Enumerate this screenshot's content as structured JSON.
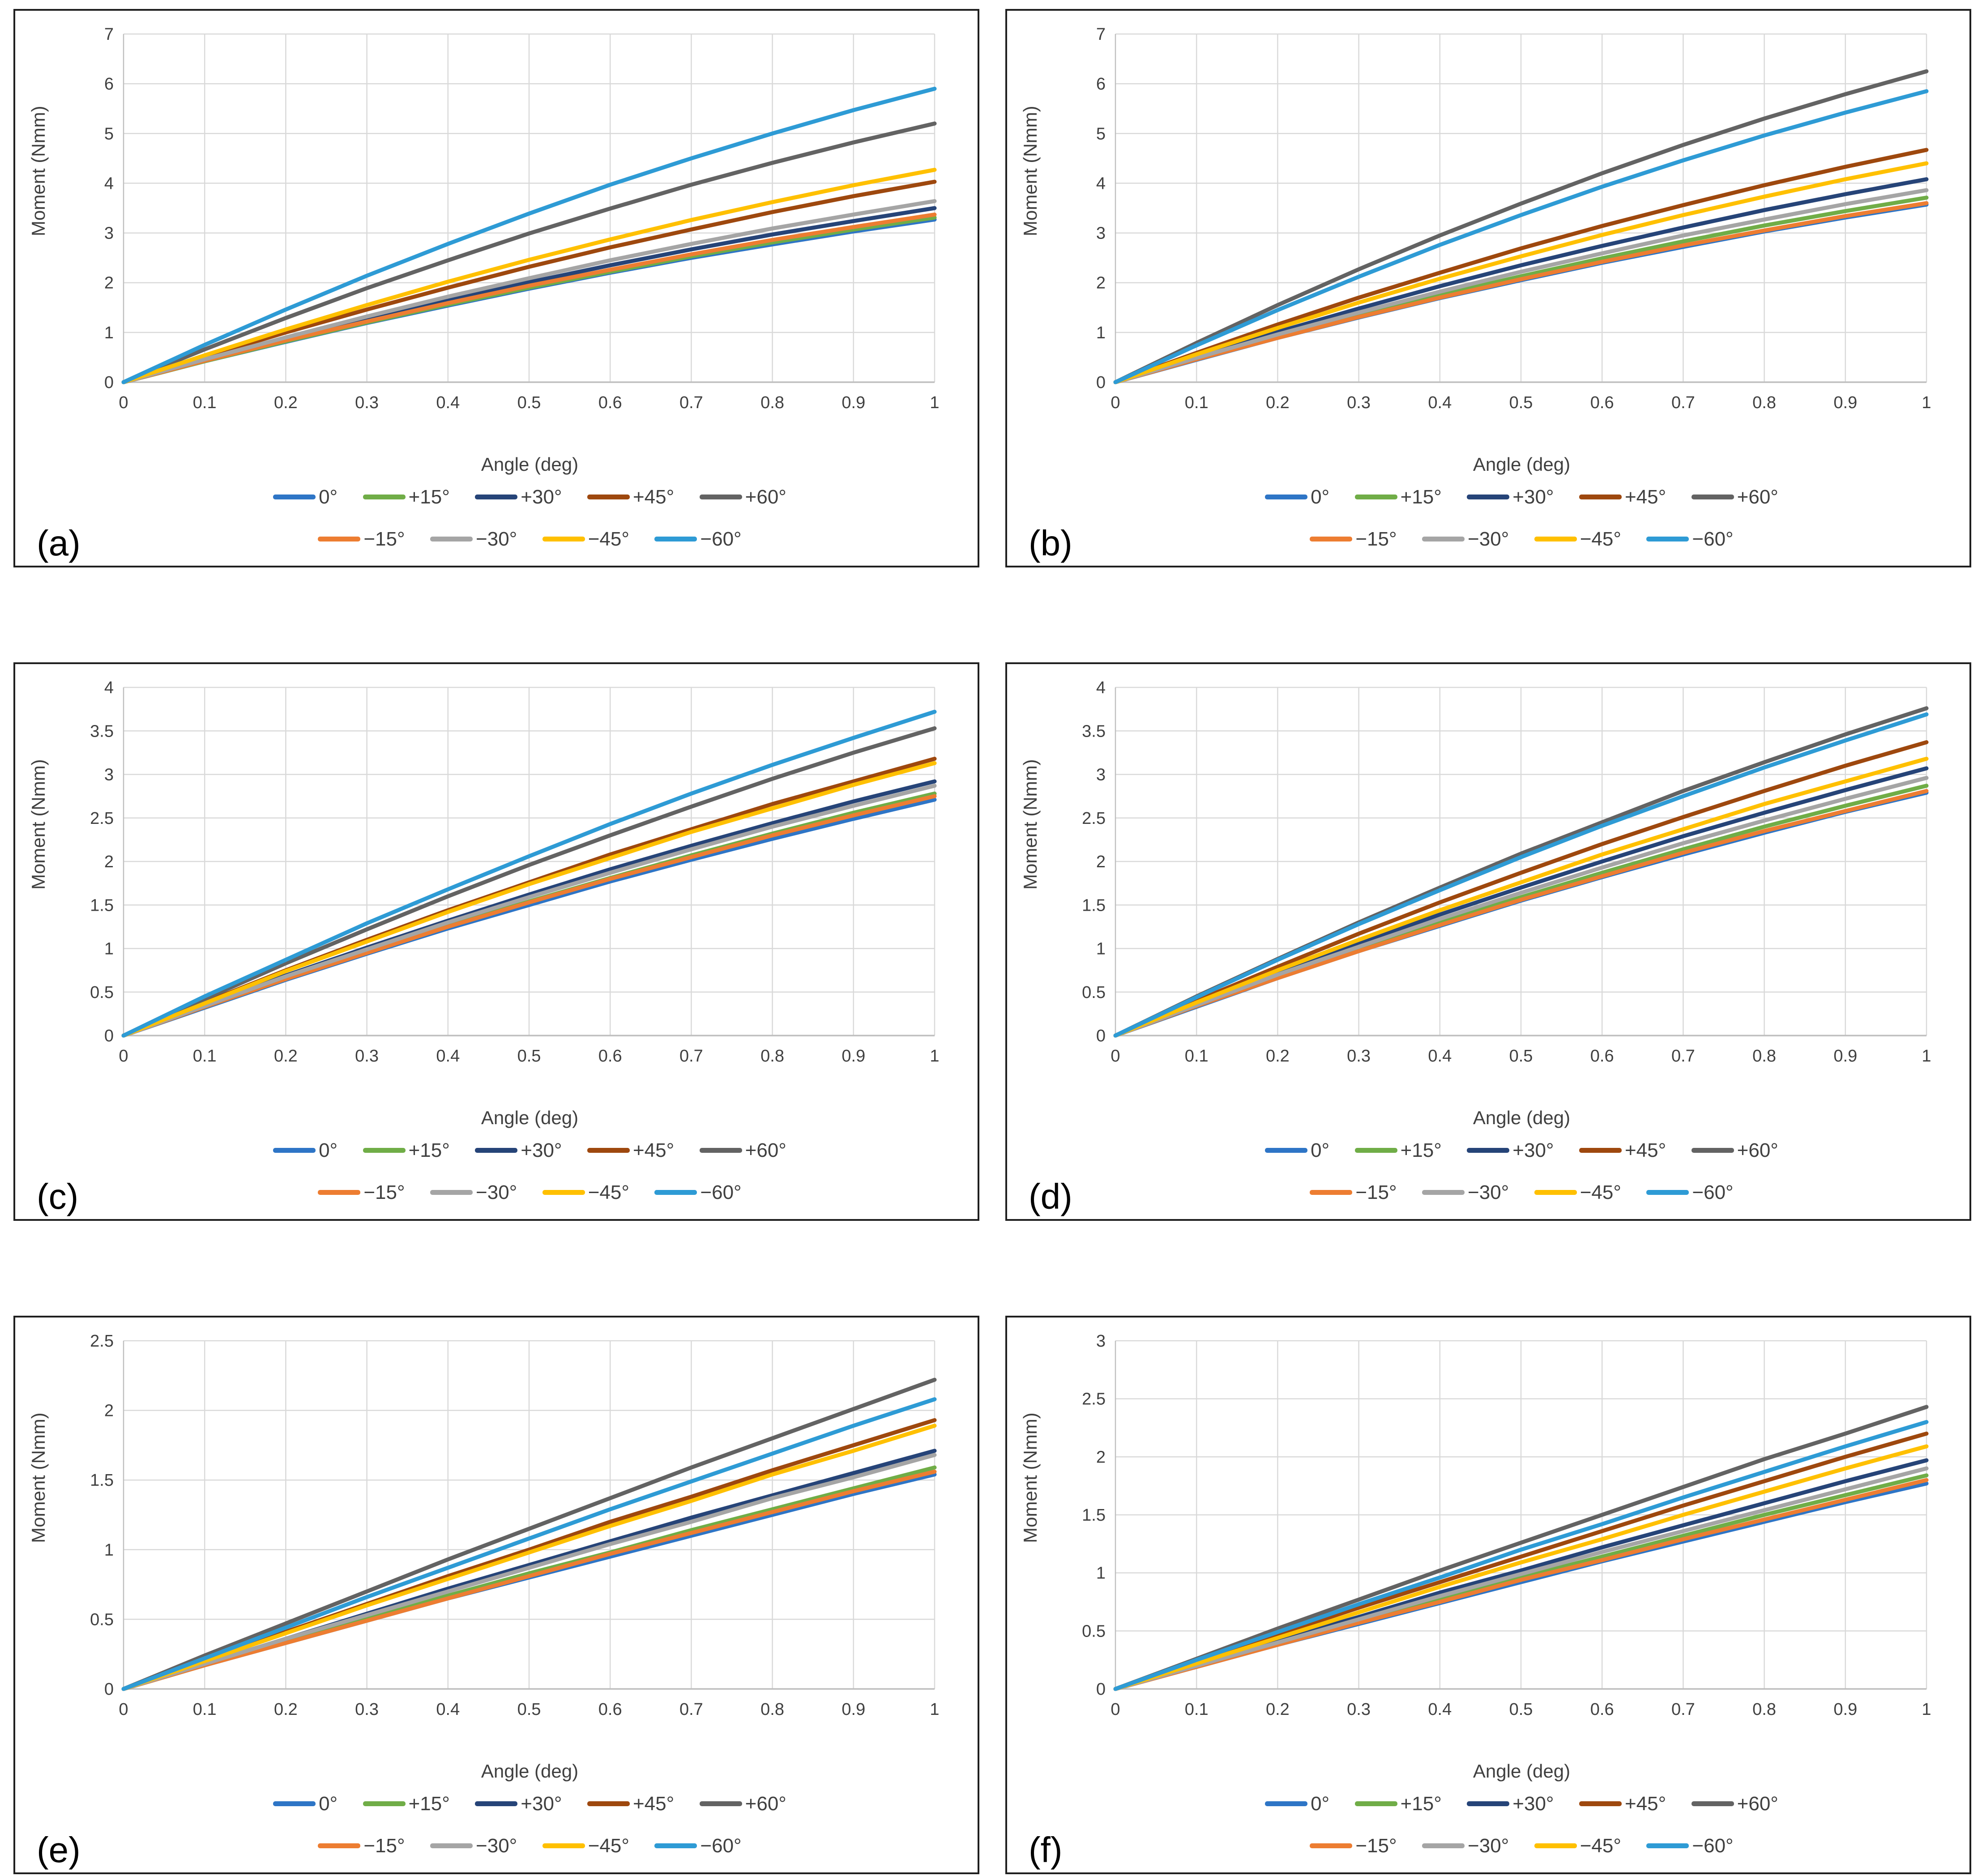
{
  "figure": {
    "description": "Six line charts of joint moment versus rotation angle for nine fin orientation angles"
  },
  "legend": {
    "labels": [
      "0°",
      "+15°",
      "+30°",
      "+45°",
      "+60°",
      "−15°",
      "−30°",
      "−45°",
      "−60°"
    ],
    "colors": [
      "#2E75C6",
      "#70AD47",
      "#264478",
      "#9E480E",
      "#636363",
      "#ED7D31",
      "#A5A5A5",
      "#FFC000",
      "#2E9BD5"
    ]
  },
  "axes": {
    "xlabel": "Angle (deg)",
    "ylabel": "Moment (Nmm)",
    "x_ticks": [
      "0",
      "0.1",
      "0.2",
      "0.3",
      "0.4",
      "0.5",
      "0.6",
      "0.7",
      "0.8",
      "0.9",
      "1"
    ],
    "x_values": [
      0,
      0.1,
      0.2,
      0.3,
      0.4,
      0.5,
      0.6,
      0.7,
      0.8,
      0.9,
      1
    ]
  },
  "chart_data": "see charts[] — type line for all panels",
  "charts": [
    {
      "panel_label": "(a)",
      "type": "line",
      "ylim": [
        0,
        7
      ],
      "y_ticks": [
        "0",
        "1",
        "2",
        "3",
        "4",
        "5",
        "6",
        "7"
      ],
      "series": [
        {
          "name": "0°",
          "values": [
            0,
            0.42,
            0.81,
            1.19,
            1.54,
            1.88,
            2.2,
            2.5,
            2.77,
            3.03,
            3.27
          ]
        },
        {
          "name": "+15°",
          "values": [
            0,
            0.42,
            0.82,
            1.2,
            1.56,
            1.9,
            2.22,
            2.53,
            2.81,
            3.07,
            3.31
          ]
        },
        {
          "name": "+30°",
          "values": [
            0,
            0.44,
            0.87,
            1.27,
            1.65,
            2.01,
            2.35,
            2.67,
            2.97,
            3.24,
            3.5
          ]
        },
        {
          "name": "+45°",
          "values": [
            0,
            0.51,
            1.0,
            1.46,
            1.9,
            2.32,
            2.71,
            3.07,
            3.42,
            3.74,
            4.03
          ]
        },
        {
          "name": "+60°",
          "values": [
            0,
            0.66,
            1.29,
            1.89,
            2.45,
            2.99,
            3.49,
            3.97,
            4.41,
            4.82,
            5.2
          ]
        },
        {
          "name": "−15°",
          "values": [
            0,
            0.43,
            0.84,
            1.22,
            1.59,
            1.94,
            2.26,
            2.57,
            2.86,
            3.12,
            3.37
          ]
        },
        {
          "name": "−30°",
          "values": [
            0,
            0.46,
            0.9,
            1.32,
            1.72,
            2.09,
            2.45,
            2.78,
            3.09,
            3.37,
            3.64
          ]
        },
        {
          "name": "−45°",
          "values": [
            0,
            0.54,
            1.06,
            1.55,
            2.02,
            2.46,
            2.87,
            3.26,
            3.62,
            3.96,
            4.27
          ]
        },
        {
          "name": "−60°",
          "values": [
            0,
            0.75,
            1.46,
            2.14,
            2.78,
            3.39,
            3.97,
            4.5,
            5.0,
            5.47,
            5.9
          ]
        }
      ]
    },
    {
      "panel_label": "(b)",
      "type": "line",
      "ylim": [
        0,
        7
      ],
      "y_ticks": [
        "0",
        "1",
        "2",
        "3",
        "4",
        "5",
        "6",
        "7"
      ],
      "series": [
        {
          "name": "0°",
          "values": [
            0,
            0.45,
            0.89,
            1.3,
            1.69,
            2.05,
            2.4,
            2.72,
            3.03,
            3.31,
            3.57
          ]
        },
        {
          "name": "+15°",
          "values": [
            0,
            0.47,
            0.92,
            1.35,
            1.75,
            2.13,
            2.49,
            2.83,
            3.15,
            3.44,
            3.71
          ]
        },
        {
          "name": "+30°",
          "values": [
            0,
            0.52,
            1.01,
            1.48,
            1.93,
            2.35,
            2.74,
            3.11,
            3.46,
            3.78,
            4.08
          ]
        },
        {
          "name": "+45°",
          "values": [
            0,
            0.59,
            1.16,
            1.7,
            2.2,
            2.69,
            3.14,
            3.56,
            3.96,
            4.33,
            4.67
          ]
        },
        {
          "name": "+60°",
          "values": [
            0,
            0.79,
            1.55,
            2.27,
            2.95,
            3.59,
            4.2,
            4.77,
            5.3,
            5.79,
            6.25
          ]
        },
        {
          "name": "−15°",
          "values": [
            0,
            0.46,
            0.89,
            1.31,
            1.7,
            2.07,
            2.42,
            2.75,
            3.05,
            3.34,
            3.6
          ]
        },
        {
          "name": "−30°",
          "values": [
            0,
            0.49,
            0.96,
            1.4,
            1.82,
            2.22,
            2.59,
            2.95,
            3.27,
            3.58,
            3.86
          ]
        },
        {
          "name": "−45°",
          "values": [
            0,
            0.56,
            1.09,
            1.6,
            2.08,
            2.53,
            2.96,
            3.36,
            3.73,
            4.08,
            4.4
          ]
        },
        {
          "name": "−60°",
          "values": [
            0,
            0.74,
            1.45,
            2.12,
            2.76,
            3.36,
            3.93,
            4.46,
            4.96,
            5.42,
            5.85
          ]
        }
      ]
    },
    {
      "panel_label": "(c)",
      "type": "line",
      "ylim": [
        0,
        4
      ],
      "y_ticks": [
        "0",
        "0.5",
        "1",
        "1.5",
        "2",
        "2.5",
        "3",
        "3.5",
        "4"
      ],
      "series": [
        {
          "name": "0°",
          "values": [
            0,
            0.32,
            0.64,
            0.94,
            1.23,
            1.5,
            1.77,
            2.02,
            2.26,
            2.49,
            2.71
          ]
        },
        {
          "name": "+15°",
          "values": [
            0,
            0.33,
            0.65,
            0.96,
            1.26,
            1.54,
            1.81,
            2.07,
            2.32,
            2.56,
            2.78
          ]
        },
        {
          "name": "+30°",
          "values": [
            0,
            0.35,
            0.69,
            1.01,
            1.32,
            1.62,
            1.91,
            2.18,
            2.44,
            2.69,
            2.92
          ]
        },
        {
          "name": "+45°",
          "values": [
            0,
            0.38,
            0.75,
            1.1,
            1.44,
            1.76,
            2.08,
            2.37,
            2.66,
            2.92,
            3.18
          ]
        },
        {
          "name": "+60°",
          "values": [
            0,
            0.42,
            0.83,
            1.22,
            1.6,
            1.96,
            2.3,
            2.63,
            2.95,
            3.25,
            3.53
          ]
        },
        {
          "name": "−15°",
          "values": [
            0,
            0.33,
            0.65,
            0.95,
            1.25,
            1.53,
            1.8,
            2.05,
            2.3,
            2.53,
            2.75
          ]
        },
        {
          "name": "−30°",
          "values": [
            0,
            0.34,
            0.68,
            0.99,
            1.3,
            1.59,
            1.87,
            2.14,
            2.4,
            2.64,
            2.87
          ]
        },
        {
          "name": "−45°",
          "values": [
            0,
            0.37,
            0.74,
            1.08,
            1.42,
            1.74,
            2.04,
            2.34,
            2.61,
            2.88,
            3.13
          ]
        },
        {
          "name": "−60°",
          "values": [
            0,
            0.45,
            0.87,
            1.29,
            1.68,
            2.06,
            2.43,
            2.78,
            3.11,
            3.42,
            3.72
          ]
        }
      ]
    },
    {
      "panel_label": "(d)",
      "type": "line",
      "ylim": [
        0,
        4
      ],
      "y_ticks": [
        "0",
        "0.5",
        "1",
        "1.5",
        "2",
        "2.5",
        "3",
        "3.5",
        "4"
      ],
      "series": [
        {
          "name": "0°",
          "values": [
            0,
            0.33,
            0.66,
            0.97,
            1.26,
            1.55,
            1.82,
            2.08,
            2.33,
            2.57,
            2.79
          ]
        },
        {
          "name": "+15°",
          "values": [
            0,
            0.34,
            0.68,
            0.99,
            1.3,
            1.59,
            1.87,
            2.14,
            2.4,
            2.64,
            2.87
          ]
        },
        {
          "name": "+30°",
          "values": [
            0,
            0.37,
            0.72,
            1.06,
            1.39,
            1.7,
            2.0,
            2.29,
            2.56,
            2.82,
            3.07
          ]
        },
        {
          "name": "+45°",
          "values": [
            0,
            0.4,
            0.79,
            1.17,
            1.53,
            1.87,
            2.2,
            2.51,
            2.81,
            3.1,
            3.37
          ]
        },
        {
          "name": "+60°",
          "values": [
            0,
            0.45,
            0.88,
            1.3,
            1.7,
            2.09,
            2.45,
            2.81,
            3.14,
            3.46,
            3.76
          ]
        },
        {
          "name": "−15°",
          "values": [
            0,
            0.34,
            0.66,
            0.97,
            1.27,
            1.56,
            1.83,
            2.1,
            2.35,
            2.58,
            2.81
          ]
        },
        {
          "name": "−30°",
          "values": [
            0,
            0.35,
            0.7,
            1.02,
            1.34,
            1.64,
            1.93,
            2.21,
            2.47,
            2.72,
            2.96
          ]
        },
        {
          "name": "−45°",
          "values": [
            0,
            0.38,
            0.75,
            1.1,
            1.44,
            1.76,
            2.08,
            2.37,
            2.66,
            2.92,
            3.18
          ]
        },
        {
          "name": "−60°",
          "values": [
            0,
            0.44,
            0.87,
            1.28,
            1.67,
            2.05,
            2.41,
            2.75,
            3.08,
            3.39,
            3.69
          ]
        }
      ]
    },
    {
      "panel_label": "(e)",
      "type": "line",
      "ylim": [
        0,
        2.5
      ],
      "y_ticks": [
        "0",
        "0.5",
        "1",
        "1.5",
        "2",
        "2.5"
      ],
      "series": [
        {
          "name": "0°",
          "values": [
            0,
            0.17,
            0.33,
            0.49,
            0.65,
            0.8,
            0.95,
            1.1,
            1.25,
            1.4,
            1.54
          ]
        },
        {
          "name": "+15°",
          "values": [
            0,
            0.17,
            0.34,
            0.5,
            0.67,
            0.83,
            0.98,
            1.14,
            1.29,
            1.44,
            1.59
          ]
        },
        {
          "name": "+30°",
          "values": [
            0,
            0.18,
            0.36,
            0.54,
            0.72,
            0.89,
            1.06,
            1.23,
            1.39,
            1.55,
            1.71
          ]
        },
        {
          "name": "+45°",
          "values": [
            0,
            0.21,
            0.41,
            0.61,
            0.81,
            1.0,
            1.2,
            1.38,
            1.57,
            1.75,
            1.93
          ]
        },
        {
          "name": "+60°",
          "values": [
            0,
            0.24,
            0.47,
            0.7,
            0.93,
            1.15,
            1.37,
            1.59,
            1.8,
            2.01,
            2.22
          ]
        },
        {
          "name": "−15°",
          "values": [
            0,
            0.17,
            0.33,
            0.49,
            0.65,
            0.81,
            0.97,
            1.12,
            1.27,
            1.42,
            1.56
          ]
        },
        {
          "name": "−30°",
          "values": [
            0,
            0.18,
            0.36,
            0.53,
            0.7,
            0.87,
            1.04,
            1.2,
            1.37,
            1.52,
            1.68
          ]
        },
        {
          "name": "−45°",
          "values": [
            0,
            0.2,
            0.4,
            0.6,
            0.79,
            0.98,
            1.17,
            1.35,
            1.54,
            1.71,
            1.89
          ]
        },
        {
          "name": "−60°",
          "values": [
            0,
            0.22,
            0.44,
            0.66,
            0.87,
            1.08,
            1.29,
            1.49,
            1.69,
            1.89,
            2.08
          ]
        }
      ]
    },
    {
      "panel_label": "(f)",
      "type": "line",
      "ylim": [
        0,
        3
      ],
      "y_ticks": [
        "0",
        "0.5",
        "1",
        "1.5",
        "2",
        "2.5",
        "3"
      ],
      "series": [
        {
          "name": "0°",
          "values": [
            0,
            0.19,
            0.38,
            0.56,
            0.74,
            0.92,
            1.1,
            1.27,
            1.44,
            1.61,
            1.77
          ]
        },
        {
          "name": "+15°",
          "values": [
            0,
            0.2,
            0.39,
            0.58,
            0.77,
            0.96,
            1.14,
            1.32,
            1.5,
            1.67,
            1.84
          ]
        },
        {
          "name": "+30°",
          "values": [
            0,
            0.21,
            0.42,
            0.62,
            0.83,
            1.02,
            1.22,
            1.41,
            1.6,
            1.79,
            1.97
          ]
        },
        {
          "name": "+45°",
          "values": [
            0,
            0.24,
            0.47,
            0.7,
            0.92,
            1.14,
            1.36,
            1.58,
            1.79,
            2.0,
            2.2
          ]
        },
        {
          "name": "+60°",
          "values": [
            0,
            0.26,
            0.52,
            0.77,
            1.02,
            1.26,
            1.5,
            1.74,
            1.98,
            2.2,
            2.43
          ]
        },
        {
          "name": "−15°",
          "values": [
            0,
            0.19,
            0.38,
            0.57,
            0.75,
            0.94,
            1.11,
            1.29,
            1.46,
            1.63,
            1.8
          ]
        },
        {
          "name": "−30°",
          "values": [
            0,
            0.2,
            0.4,
            0.6,
            0.8,
            0.99,
            1.18,
            1.36,
            1.54,
            1.72,
            1.9
          ]
        },
        {
          "name": "−45°",
          "values": [
            0,
            0.22,
            0.44,
            0.66,
            0.88,
            1.09,
            1.29,
            1.5,
            1.7,
            1.9,
            2.09
          ]
        },
        {
          "name": "−60°",
          "values": [
            0,
            0.25,
            0.49,
            0.73,
            0.96,
            1.2,
            1.42,
            1.65,
            1.87,
            2.09,
            2.3
          ]
        }
      ]
    }
  ]
}
